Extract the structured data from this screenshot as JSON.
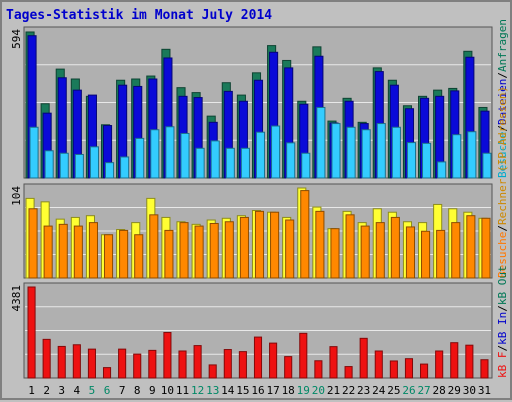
{
  "title": "Tages-Statistik im Monat July 2014",
  "chart_data": [
    {
      "type": "bar",
      "ymax_label": "594",
      "ylim": [
        0,
        594
      ],
      "x": [
        "1",
        "2",
        "3",
        "4",
        "5",
        "6",
        "7",
        "8",
        "9",
        "10",
        "11",
        "12",
        "13",
        "14",
        "15",
        "16",
        "17",
        "18",
        "19",
        "20",
        "21",
        "22",
        "23",
        "24",
        "25",
        "26",
        "27",
        "28",
        "29",
        "30",
        "31"
      ],
      "weekend_days": [
        "5",
        "6",
        "12",
        "13",
        "19",
        "20",
        "26",
        "27"
      ],
      "series": [
        {
          "name": "Anfragen",
          "color": "#1a7a5a",
          "values": [
            590,
            300,
            440,
            400,
            330,
            215,
            395,
            400,
            412,
            520,
            365,
            345,
            250,
            385,
            335,
            425,
            535,
            475,
            310,
            530,
            230,
            322,
            225,
            445,
            395,
            292,
            330,
            355,
            362,
            512,
            285
          ]
        },
        {
          "name": "Dateien",
          "color": "#0a0ad8",
          "values": [
            575,
            262,
            405,
            355,
            335,
            212,
            375,
            370,
            400,
            485,
            330,
            325,
            225,
            350,
            310,
            395,
            508,
            445,
            298,
            492,
            222,
            310,
            220,
            430,
            375,
            280,
            322,
            330,
            352,
            488,
            270
          ]
        },
        {
          "name": "Besuche",
          "color": "#33ccff",
          "values": [
            205,
            110,
            100,
            95,
            126,
            62,
            85,
            160,
            195,
            207,
            180,
            120,
            150,
            120,
            120,
            185,
            210,
            142,
            100,
            285,
            220,
            205,
            195,
            220,
            205,
            143,
            140,
            65,
            175,
            187,
            100
          ]
        }
      ]
    },
    {
      "type": "bar",
      "ymax_label": "104",
      "ylim": [
        0,
        104
      ],
      "x": [
        "1",
        "2",
        "3",
        "4",
        "5",
        "6",
        "7",
        "8",
        "9",
        "10",
        "11",
        "12",
        "13",
        "14",
        "15",
        "16",
        "17",
        "18",
        "19",
        "20",
        "21",
        "22",
        "23",
        "24",
        "25",
        "26",
        "27",
        "28",
        "29",
        "30",
        "31"
      ],
      "series": [
        {
          "name": "Rechner (IP-Adressen)",
          "color": "#ffff33",
          "values": [
            92,
            88,
            68,
            70,
            72,
            50,
            56,
            64,
            92,
            70,
            65,
            62,
            67,
            69,
            72,
            78,
            76,
            70,
            104,
            82,
            57,
            77,
            64,
            80,
            76,
            65,
            64,
            85,
            80,
            76,
            69
          ]
        },
        {
          "name": "Besuche",
          "color": "#ff8800",
          "values": [
            80,
            60,
            62,
            60,
            64,
            50,
            55,
            50,
            73,
            55,
            64,
            60,
            63,
            65,
            70,
            77,
            76,
            67,
            101,
            77,
            57,
            73,
            60,
            64,
            70,
            59,
            54,
            55,
            64,
            72,
            69
          ]
        }
      ]
    },
    {
      "type": "bar",
      "ymax_label": "4381",
      "ylim": [
        0,
        4381
      ],
      "x": [
        "1",
        "2",
        "3",
        "4",
        "5",
        "6",
        "7",
        "8",
        "9",
        "10",
        "11",
        "12",
        "13",
        "14",
        "15",
        "16",
        "17",
        "18",
        "19",
        "20",
        "21",
        "22",
        "23",
        "24",
        "25",
        "26",
        "27",
        "28",
        "29",
        "30",
        "31"
      ],
      "series": [
        {
          "name": "kB F",
          "color": "#ee1111",
          "values": [
            4381,
            1860,
            1520,
            1600,
            1390,
            500,
            1390,
            1150,
            1330,
            2190,
            1300,
            1560,
            630,
            1370,
            1270,
            1970,
            1680,
            1030,
            2150,
            830,
            1510,
            550,
            1910,
            1300,
            820,
            930,
            670,
            1300,
            1700,
            1580,
            880
          ]
        }
      ]
    }
  ],
  "legend_right": {
    "panel1": {
      "anfragen": "Anfragen",
      "sep1": "/",
      "dateien": "Dateien",
      "sep2": "/",
      "besuche": "Besuche",
      "colors": {
        "anfragen": "#007755",
        "dateien": "#0000cc",
        "besuche": "#00aacc"
      }
    },
    "panel2": {
      "rechner": "Rechner (IP-Adressen)",
      "sep1": "/",
      "besuche": "Besuche",
      "colors": {
        "rechner": "#cc8800",
        "besuche": "#ff7700"
      }
    },
    "panel3": {
      "kbf": "kB F",
      "sep1": "/",
      "kbin": "kB In",
      "sep2": "/",
      "kbout": "kB Out",
      "colors": {
        "kbf": "#ee1111",
        "kbin": "#0000cc",
        "kbout": "#007755"
      }
    }
  },
  "colors": {
    "weekday_label": "#000000",
    "weekend_label": "#008866"
  }
}
